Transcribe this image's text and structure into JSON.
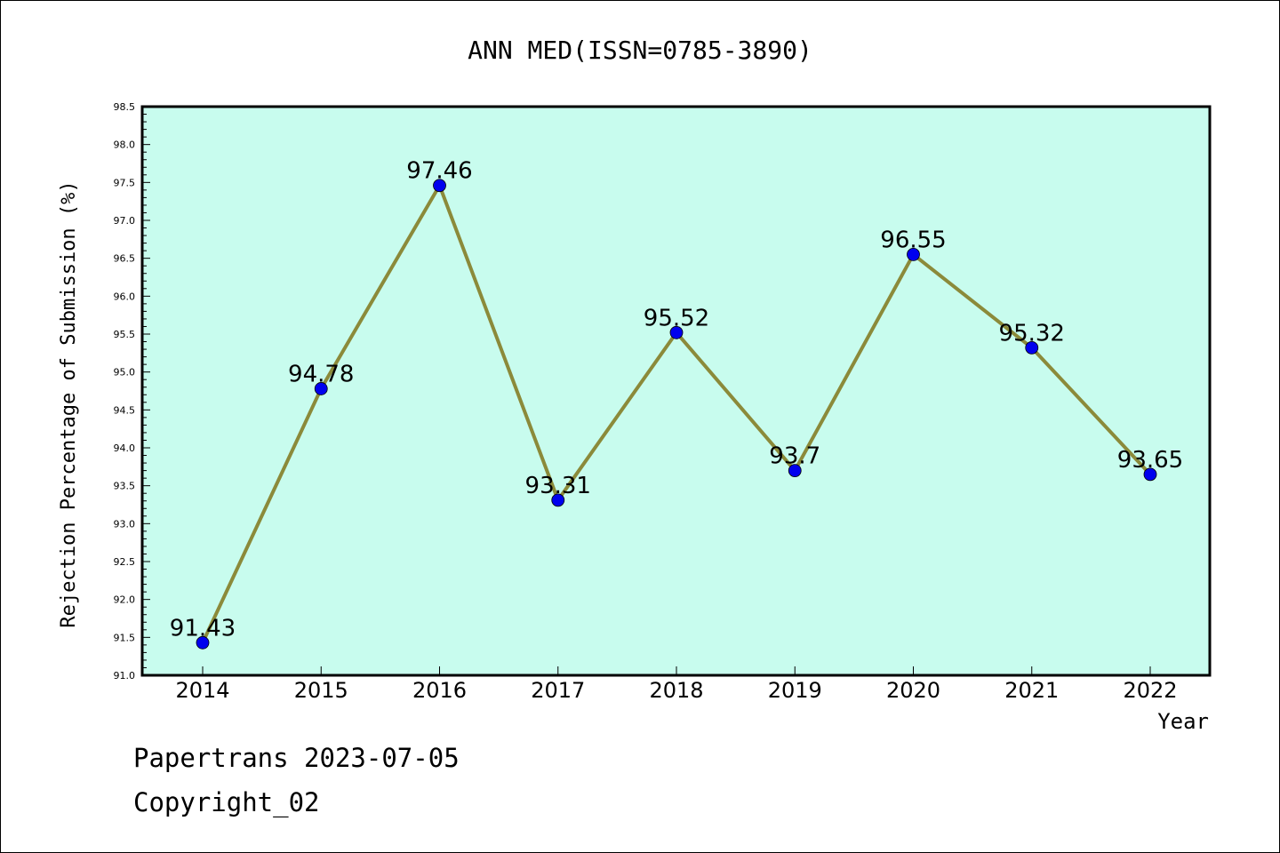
{
  "chart_data": {
    "type": "line",
    "title": "ANN MED(ISSN=0785-3890)",
    "xlabel": "Year",
    "ylabel": "Rejection Percentage of Submission (%)",
    "categories": [
      "2014",
      "2015",
      "2016",
      "2017",
      "2018",
      "2019",
      "2020",
      "2021",
      "2022"
    ],
    "values": [
      91.43,
      94.78,
      97.46,
      93.31,
      95.52,
      93.7,
      96.55,
      95.32,
      93.65
    ],
    "data_labels": [
      "91.43",
      "94.78",
      "97.46",
      "93.31",
      "95.52",
      "93.7",
      "96.55",
      "95.32",
      "93.65"
    ],
    "ylim": [
      91.0,
      98.5
    ],
    "yticks": [
      "91.0",
      "91.5",
      "92.0",
      "92.5",
      "93.0",
      "93.5",
      "94.0",
      "94.5",
      "95.0",
      "95.5",
      "96.0",
      "96.5",
      "97.0",
      "97.5",
      "98.0",
      "98.5"
    ],
    "grid": false,
    "colors": {
      "plot_background": "#c8fcee",
      "line": "#8b8a3a",
      "marker": "#0000ee"
    }
  },
  "footer": {
    "line1": "Papertrans 2023-07-05",
    "line2": "Copyright_02"
  }
}
